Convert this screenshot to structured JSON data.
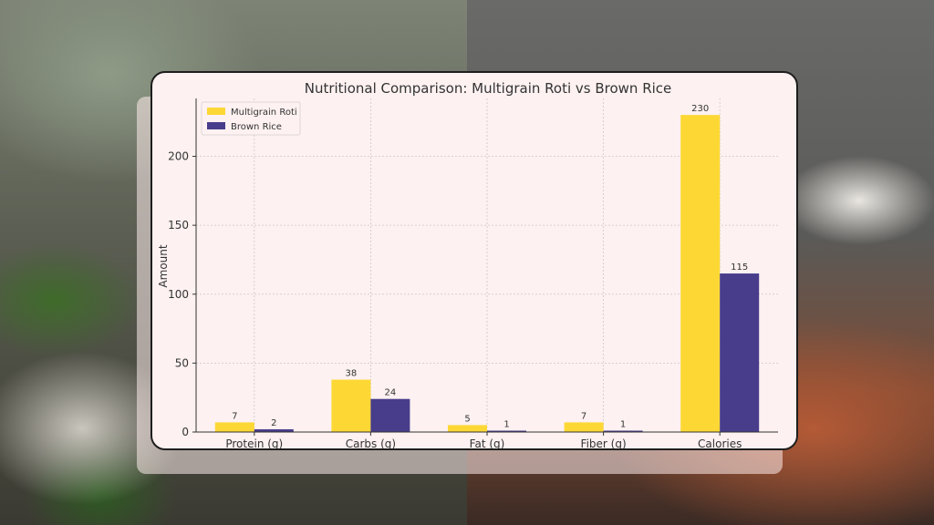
{
  "chart_data": {
    "type": "bar",
    "title": "Nutritional Comparison: Multigrain Roti vs Brown Rice",
    "xlabel": "",
    "ylabel": "Amount",
    "categories": [
      "Protein (g)",
      "Carbs (g)",
      "Fat (g)",
      "Fiber (g)",
      "Calories"
    ],
    "series": [
      {
        "name": "Multigrain Roti",
        "values": [
          7,
          38,
          5,
          7,
          230
        ],
        "color": "#fdd835"
      },
      {
        "name": "Brown Rice",
        "values": [
          2,
          24,
          1,
          1,
          115
        ],
        "color": "#483d8b"
      }
    ],
    "ylim": [
      0,
      242
    ],
    "yticks": [
      0,
      50,
      100,
      150,
      200
    ],
    "grid": true,
    "legend": "top-left",
    "data_labels": true
  }
}
